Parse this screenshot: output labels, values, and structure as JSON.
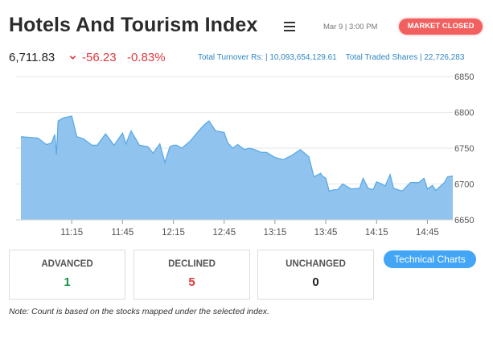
{
  "header": {
    "title": "Hotels And Tourism Index",
    "datetime": "Mar 9 | 3:00 PM",
    "status": "MARKET CLOSED"
  },
  "quote": {
    "price": "6,711.83",
    "change": "-56.23",
    "change_pct": "-0.83%",
    "turnover_label": "Total Turnover Rs:",
    "turnover_value": "10,093,654,129.61",
    "shares_label": "Total Traded Shares",
    "shares_value": "22,726,283"
  },
  "colors": {
    "accent": "#42a5f5",
    "negative": "#e0393e",
    "area_fill": "#90c4ee",
    "area_line": "#5aa9e6",
    "badge": "#f25f5f",
    "advanced": "#1a9641"
  },
  "chart_data": {
    "type": "area",
    "x": [
      "10:45",
      "10:55",
      "11:00",
      "11:03",
      "11:05",
      "11:06",
      "11:07",
      "11:10",
      "11:15",
      "11:18",
      "11:22",
      "11:27",
      "11:30",
      "11:35",
      "11:40",
      "11:45",
      "11:47",
      "11:50",
      "11:55",
      "12:00",
      "12:03",
      "12:07",
      "12:10",
      "12:13",
      "12:15",
      "12:17",
      "12:20",
      "12:25",
      "12:30",
      "12:33",
      "12:36",
      "12:40",
      "12:45",
      "12:47",
      "12:50",
      "12:53",
      "12:57",
      "13:00",
      "13:03",
      "13:07",
      "13:10",
      "13:15",
      "13:20",
      "13:25",
      "13:30",
      "13:35",
      "13:38",
      "13:42",
      "13:43",
      "13:45",
      "13:47",
      "13:50",
      "13:52",
      "13:55",
      "14:00",
      "14:05",
      "14:07",
      "14:10",
      "14:13",
      "14:15",
      "14:18",
      "14:20",
      "14:23",
      "14:25",
      "14:30",
      "14:35",
      "14:40",
      "14:43",
      "14:45",
      "14:48",
      "14:50",
      "14:55",
      "14:57",
      "15:00"
    ],
    "values": [
      6766,
      6764,
      6755,
      6757,
      6769,
      6741,
      6788,
      6792,
      6795,
      6766,
      6763,
      6754,
      6754,
      6770,
      6754,
      6771,
      6756,
      6774,
      6754,
      6752,
      6743,
      6756,
      6730,
      6752,
      6754,
      6754,
      6750,
      6760,
      6774,
      6782,
      6788,
      6774,
      6772,
      6758,
      6750,
      6755,
      6748,
      6750,
      6748,
      6744,
      6744,
      6737,
      6734,
      6740,
      6748,
      6738,
      6710,
      6715,
      6711,
      6708,
      6690,
      6692,
      6692,
      6700,
      6693,
      6694,
      6708,
      6694,
      6692,
      6703,
      6700,
      6697,
      6713,
      6694,
      6690,
      6702,
      6702,
      6708,
      6693,
      6698,
      6691,
      6702,
      6710,
      6711
    ],
    "xticks": [
      "11:15",
      "11:45",
      "12:15",
      "12:45",
      "13:15",
      "13:45",
      "14:15",
      "14:45"
    ],
    "yticks": [
      6650,
      6700,
      6750,
      6800,
      6850
    ],
    "ylim": [
      6650,
      6850
    ],
    "xlim": [
      "10:45",
      "15:00"
    ],
    "grid": true
  },
  "stats": {
    "advanced_label": "ADVANCED",
    "advanced_value": "1",
    "declined_label": "DECLINED",
    "declined_value": "5",
    "unchanged_label": "UNCHANGED",
    "unchanged_value": "0"
  },
  "actions": {
    "technical_charts": "Technical Charts"
  },
  "note": "Note: Count is based on the stocks mapped under the selected index."
}
